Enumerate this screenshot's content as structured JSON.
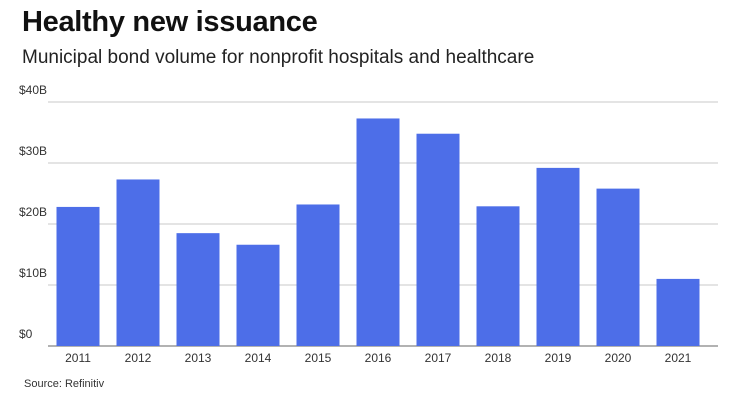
{
  "chart_data": {
    "type": "bar",
    "title": "Healthy new issuance",
    "subtitle": "Municipal bond volume for nonprofit hospitals and healthcare",
    "categories": [
      "2011",
      "2012",
      "2013",
      "2014",
      "2015",
      "2016",
      "2017",
      "2018",
      "2019",
      "2020",
      "2021"
    ],
    "values": [
      22.8,
      27.3,
      18.5,
      16.6,
      23.2,
      37.3,
      34.8,
      22.9,
      29.2,
      25.8,
      11.0
    ],
    "unit": "billions USD",
    "xlabel": "",
    "ylabel": "",
    "ylim": [
      0,
      40
    ],
    "yticks": [
      0,
      10,
      20,
      30,
      40
    ],
    "ytick_labels": [
      "$0",
      "$10B",
      "$20B",
      "$30B",
      "$40B"
    ],
    "grid": true,
    "bar_color": "#4d6ee8",
    "source": "Source: Refinitiv"
  }
}
